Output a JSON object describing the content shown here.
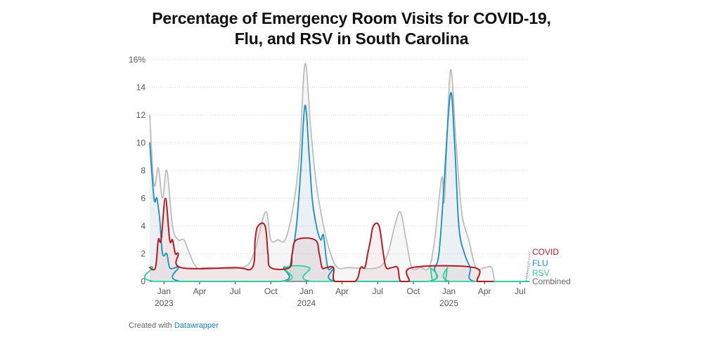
{
  "title_line1": "Percentage of Emergency Room Visits for COVID-19,",
  "title_line2": "Flu, and RSV in South Carolina",
  "footer": {
    "prefix": "Created with",
    "link": "Datawrapper"
  },
  "colors": {
    "covid": "#b01c24",
    "flu": "#1b8dc0",
    "rsv": "#2fd09a",
    "combined": "#bdbdbd"
  },
  "chart_data": {
    "type": "line",
    "title": "Percentage of Emergency Room Visits for COVID-19, Flu, and RSV in South Carolina",
    "xlabel": "",
    "ylabel": "",
    "ylim": [
      0,
      16
    ],
    "xlim": [
      2022.9,
      2025.56
    ],
    "y_ticks": [
      0,
      2,
      4,
      6,
      8,
      10,
      12,
      14,
      16
    ],
    "y_tick_labels": [
      "0",
      "2",
      "4",
      "6",
      "8",
      "10",
      "12",
      "14",
      "16%"
    ],
    "x_ticks": [
      {
        "x": 2023.0,
        "label": "Jan",
        "year": "2023"
      },
      {
        "x": 2023.25,
        "label": "Apr",
        "year": ""
      },
      {
        "x": 2023.5,
        "label": "Jul",
        "year": ""
      },
      {
        "x": 2023.75,
        "label": "Oct",
        "year": ""
      },
      {
        "x": 2024.0,
        "label": "Jan",
        "year": "2024"
      },
      {
        "x": 2024.25,
        "label": "Apr",
        "year": ""
      },
      {
        "x": 2024.5,
        "label": "Jul",
        "year": ""
      },
      {
        "x": 2024.75,
        "label": "Oct",
        "year": ""
      },
      {
        "x": 2025.0,
        "label": "Jan",
        "year": "2025"
      },
      {
        "x": 2025.25,
        "label": "Apr",
        "year": ""
      },
      {
        "x": 2025.5,
        "label": "Jul",
        "year": ""
      }
    ],
    "legend": [
      "COVID",
      "FLU",
      "RSV",
      "Combined"
    ],
    "series": [
      {
        "name": "Combined",
        "points": [
          [
            2022.9,
            12
          ],
          [
            2022.93,
            7
          ],
          [
            2022.96,
            8.2
          ],
          [
            2022.99,
            6
          ],
          [
            2023.02,
            8
          ],
          [
            2023.06,
            4
          ],
          [
            2023.1,
            3
          ],
          [
            2023.14,
            3
          ],
          [
            2023.18,
            2
          ],
          [
            2023.23,
            1
          ],
          [
            2023.3,
            1
          ],
          [
            2023.55,
            1
          ],
          [
            2023.63,
            2
          ],
          [
            2023.68,
            4
          ],
          [
            2023.72,
            5
          ],
          [
            2023.75,
            3
          ],
          [
            2023.8,
            3
          ],
          [
            2023.85,
            3
          ],
          [
            2023.9,
            5
          ],
          [
            2023.95,
            9
          ],
          [
            2023.99,
            15.7
          ],
          [
            2024.03,
            11
          ],
          [
            2024.07,
            7
          ],
          [
            2024.12,
            4
          ],
          [
            2024.17,
            2
          ],
          [
            2024.22,
            1
          ],
          [
            2024.3,
            1
          ],
          [
            2024.5,
            1
          ],
          [
            2024.57,
            2
          ],
          [
            2024.62,
            4
          ],
          [
            2024.66,
            5
          ],
          [
            2024.7,
            3
          ],
          [
            2024.74,
            1
          ],
          [
            2024.8,
            1
          ],
          [
            2024.86,
            1
          ],
          [
            2024.9,
            3
          ],
          [
            2024.95,
            7.5
          ],
          [
            2024.97,
            6
          ],
          [
            2025.01,
            15.2
          ],
          [
            2025.05,
            10
          ],
          [
            2025.09,
            5
          ],
          [
            2025.14,
            3
          ],
          [
            2025.19,
            1
          ],
          [
            2025.25,
            1
          ],
          [
            2025.3,
            1
          ],
          [
            2025.32,
            0
          ]
        ]
      },
      {
        "name": "FLU",
        "points": [
          [
            2022.9,
            10
          ],
          [
            2022.93,
            6
          ],
          [
            2022.95,
            6
          ],
          [
            2022.97,
            4.5
          ],
          [
            2022.99,
            2
          ],
          [
            2023.02,
            2
          ],
          [
            2023.04,
            1
          ],
          [
            2023.08,
            1
          ],
          [
            2023.1,
            1
          ],
          [
            2023.12,
            0
          ],
          [
            2023.82,
            0
          ],
          [
            2023.84,
            1
          ],
          [
            2023.88,
            1
          ],
          [
            2023.9,
            2
          ],
          [
            2023.93,
            4
          ],
          [
            2023.96,
            8
          ],
          [
            2023.99,
            12.7
          ],
          [
            2024.02,
            9
          ],
          [
            2024.04,
            6
          ],
          [
            2024.07,
            4
          ],
          [
            2024.1,
            3
          ],
          [
            2024.12,
            3.3
          ],
          [
            2024.15,
            1
          ],
          [
            2024.19,
            1
          ],
          [
            2024.21,
            0
          ],
          [
            2024.85,
            0
          ],
          [
            2024.9,
            1
          ],
          [
            2024.93,
            2
          ],
          [
            2024.96,
            6
          ],
          [
            2025.01,
            13.5
          ],
          [
            2025.04,
            10
          ],
          [
            2025.07,
            4
          ],
          [
            2025.11,
            2
          ],
          [
            2025.15,
            1
          ],
          [
            2025.18,
            0
          ],
          [
            2025.56,
            0
          ]
        ]
      },
      {
        "name": "RSV",
        "points": [
          [
            2022.9,
            1
          ],
          [
            2022.92,
            1
          ],
          [
            2022.94,
            0
          ],
          [
            2023.83,
            0
          ],
          [
            2023.85,
            1
          ],
          [
            2024.02,
            1
          ],
          [
            2024.04,
            0
          ],
          [
            2024.85,
            0
          ],
          [
            2024.87,
            1
          ],
          [
            2024.89,
            0
          ],
          [
            2024.97,
            0
          ],
          [
            2024.99,
            1
          ],
          [
            2025.01,
            0
          ],
          [
            2025.56,
            0
          ]
        ]
      },
      {
        "name": "COVID",
        "points": [
          [
            2022.9,
            1
          ],
          [
            2022.94,
            1
          ],
          [
            2022.96,
            3
          ],
          [
            2022.98,
            3
          ],
          [
            2023.01,
            6
          ],
          [
            2023.04,
            3
          ],
          [
            2023.06,
            3
          ],
          [
            2023.08,
            2
          ],
          [
            2023.1,
            2
          ],
          [
            2023.12,
            1
          ],
          [
            2023.5,
            1
          ],
          [
            2023.62,
            1
          ],
          [
            2023.64,
            3
          ],
          [
            2023.66,
            4
          ],
          [
            2023.71,
            4
          ],
          [
            2023.73,
            2
          ],
          [
            2023.75,
            1
          ],
          [
            2023.88,
            1
          ],
          [
            2023.9,
            2
          ],
          [
            2023.93,
            3
          ],
          [
            2024.06,
            3
          ],
          [
            2024.09,
            2
          ],
          [
            2024.11,
            1
          ],
          [
            2024.14,
            1
          ],
          [
            2024.19,
            1
          ],
          [
            2024.2,
            0
          ],
          [
            2024.34,
            0
          ],
          [
            2024.38,
            1
          ],
          [
            2024.41,
            1
          ],
          [
            2024.43,
            2
          ],
          [
            2024.45,
            3
          ],
          [
            2024.47,
            4
          ],
          [
            2024.51,
            4
          ],
          [
            2024.54,
            2
          ],
          [
            2024.56,
            1
          ],
          [
            2024.6,
            1
          ],
          [
            2024.64,
            1
          ],
          [
            2024.66,
            0
          ],
          [
            2024.72,
            0
          ],
          [
            2024.74,
            1
          ],
          [
            2025.18,
            1
          ],
          [
            2025.2,
            0
          ],
          [
            2025.28,
            0
          ],
          [
            2025.31,
            0
          ]
        ]
      }
    ]
  }
}
